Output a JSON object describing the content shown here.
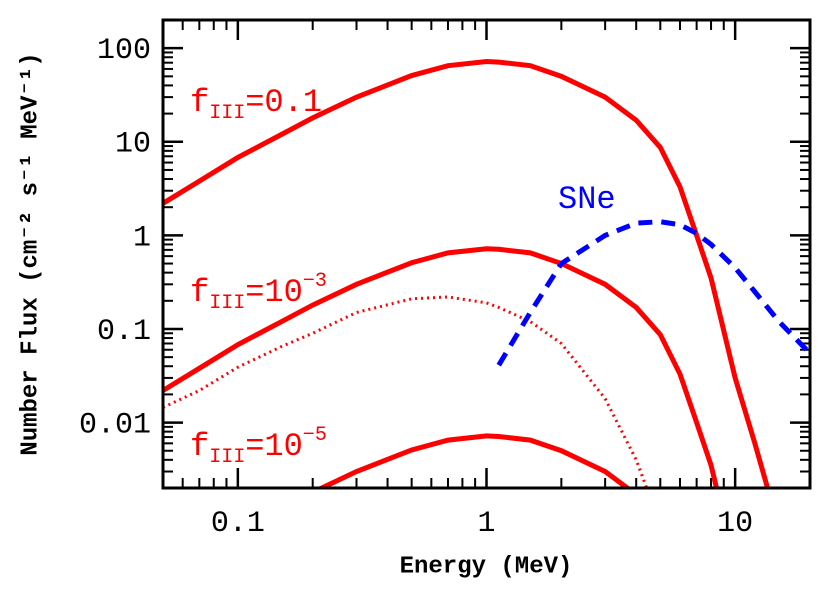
{
  "chart_data": {
    "type": "line",
    "x_label": "Energy (MeV)",
    "y_label": "Number Flux (cm⁻² s⁻¹ MeV⁻¹)",
    "xlog": true,
    "ylog": true,
    "xlim": [
      0.05,
      20
    ],
    "ylim": [
      0.002,
      200
    ],
    "xticks": [
      0.1,
      1,
      10
    ],
    "yticks": [
      0.01,
      0.1,
      1,
      10,
      100
    ],
    "minor_ticks": true,
    "x": [
      0.05,
      0.07,
      0.1,
      0.15,
      0.2,
      0.3,
      0.5,
      0.7,
      1,
      1.12,
      1.5,
      2,
      3,
      4,
      5,
      6,
      7,
      8,
      10,
      12,
      13.5,
      15,
      20
    ],
    "series": [
      {
        "color": "#ff0000",
        "style": "solid",
        "values": [
          2.2,
          3.8,
          6.8,
          12,
          18,
          30,
          51,
          65,
          72,
          71,
          65,
          50,
          30,
          17,
          8.7,
          3.3,
          1.0,
          0.35,
          0.03,
          0.006,
          0.002,
          null,
          null
        ]
      },
      {
        "color": "#ff0000",
        "style": "solid",
        "values": [
          0.022,
          0.038,
          0.068,
          0.12,
          0.18,
          0.3,
          0.51,
          0.65,
          0.72,
          0.71,
          0.65,
          0.5,
          0.3,
          0.17,
          0.087,
          0.033,
          0.01,
          0.0035,
          0.0003,
          null,
          null,
          null,
          null
        ]
      },
      {
        "color": "#ff0000",
        "style": "solid",
        "values": [
          null,
          null,
          null,
          null,
          0.0018,
          0.003,
          0.0051,
          0.0065,
          0.0072,
          0.0071,
          0.0065,
          0.005,
          0.003,
          0.0017,
          null,
          null,
          null,
          null,
          null,
          null,
          null,
          null,
          null
        ]
      },
      {
        "color": "#ff0000",
        "style": "dotted",
        "values": [
          0.0145,
          0.022,
          0.039,
          0.065,
          0.09,
          0.15,
          0.21,
          0.22,
          0.19,
          0.17,
          0.12,
          0.07,
          0.018,
          0.004,
          0.0008,
          null,
          null,
          null,
          null,
          null,
          null,
          null,
          null
        ]
      },
      {
        "color": "#0000ff",
        "style": "dashed",
        "values": [
          null,
          null,
          null,
          null,
          null,
          null,
          null,
          null,
          null,
          0.041,
          0.15,
          0.5,
          1.0,
          1.35,
          1.4,
          1.3,
          1.05,
          0.8,
          0.45,
          0.25,
          0.17,
          0.12,
          0.055
        ]
      }
    ],
    "annotations": [
      {
        "color": "#ff0000",
        "base": "f",
        "sub": "III",
        "main": "=0.1"
      },
      {
        "color": "#ff0000",
        "base": "f",
        "sub": "III",
        "main": "=10",
        "sup": "−3"
      },
      {
        "color": "#ff0000",
        "base": "f",
        "sub": "III",
        "main": "=10",
        "sup": "−5"
      },
      {
        "color": "#0000ff",
        "base": "SNe"
      }
    ]
  }
}
